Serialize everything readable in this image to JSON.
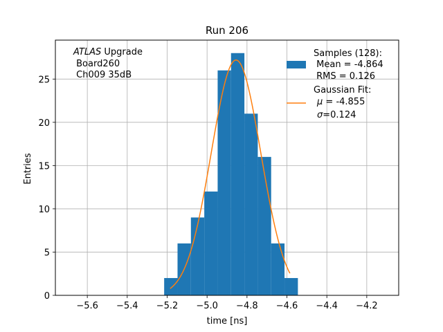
{
  "chart_data": {
    "type": "bar",
    "title": "Run 206",
    "xlabel": "time [ns]",
    "ylabel": "Entries",
    "xlim": [
      -5.76,
      -4.04
    ],
    "ylim": [
      0,
      29.5
    ],
    "grid": true,
    "x_ticks": [
      -5.6,
      -5.4,
      -5.2,
      -5.0,
      -4.8,
      -4.6,
      -4.4,
      -4.2
    ],
    "x_tick_labels": [
      "−5.6",
      "−5.4",
      "−5.2",
      "−5.0",
      "−4.8",
      "−4.6",
      "−4.4",
      "−4.2"
    ],
    "y_ticks": [
      0,
      5,
      10,
      15,
      20,
      25
    ],
    "y_tick_labels": [
      "0",
      "5",
      "10",
      "15",
      "20",
      "25"
    ],
    "histogram": {
      "name": "Samples (128):",
      "color": "#1f77b4",
      "bin_edges": [
        -5.215,
        -5.148,
        -5.081,
        -5.014,
        -4.947,
        -4.88,
        -4.813,
        -4.746,
        -4.679,
        -4.612,
        -4.545
      ],
      "counts": [
        2,
        6,
        9,
        12,
        26,
        28,
        21,
        16,
        6,
        2
      ]
    },
    "fit": {
      "name": "Gaussian Fit:",
      "type": "gaussian",
      "color": "#ff7f0e",
      "mu": -4.855,
      "sigma": 0.124,
      "amplitude": 27.2,
      "x_range": [
        -5.185,
        -4.585
      ]
    },
    "annotation": {
      "line1_italic": "ATLAS",
      "line1_rest": " Upgrade",
      "line2": " Board260",
      "line3": " Ch009 35dB"
    },
    "legend": {
      "position": "top-right",
      "hist_lines": [
        "Samples (128):",
        " Mean = -4.864",
        " RMS = 0.126"
      ],
      "fit_line1": "Gaussian Fit:",
      "fit_mu_symbol": "μ",
      "fit_mu_text": " = -4.855",
      "fit_sigma_symbol": "σ",
      "fit_sigma_text": "=0.124"
    }
  }
}
